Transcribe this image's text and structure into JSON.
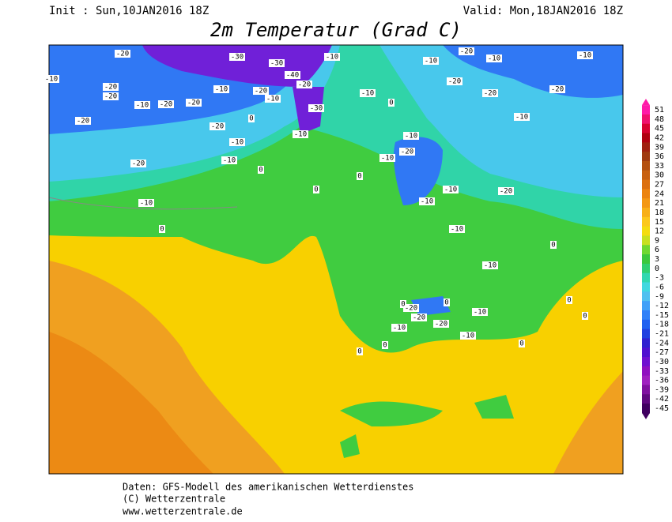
{
  "header": {
    "init": "Init : Sun,10JAN2016 18Z",
    "valid": "Valid: Mon,18JAN2016 18Z",
    "title": "2m Temperatur (Grad C)"
  },
  "legend": {
    "values": [
      51,
      48,
      45,
      42,
      39,
      36,
      33,
      30,
      27,
      24,
      21,
      18,
      15,
      12,
      9,
      6,
      3,
      0,
      -3,
      -6,
      -9,
      -12,
      -15,
      -18,
      -21,
      -24,
      -27,
      -30,
      -33,
      -36,
      -39,
      -42,
      -45
    ],
    "colors": [
      "#ff1aa8",
      "#f0106e",
      "#d80030",
      "#b00010",
      "#a02010",
      "#a03a10",
      "#b45010",
      "#c86010",
      "#dc7010",
      "#ec8410",
      "#f49814",
      "#f8b018",
      "#fcc81c",
      "#f4dc10",
      "#c8e020",
      "#70d830",
      "#3cc83c",
      "#30d070",
      "#30d8b0",
      "#40d8e0",
      "#50c0f0",
      "#40a0f8",
      "#3080f8",
      "#2060f0",
      "#2040e0",
      "#3020d0",
      "#5010d0",
      "#7010d0",
      "#9010c0",
      "#a020c0",
      "#8010a0",
      "#600880",
      "#400060"
    ]
  },
  "map": {
    "contour_labels": [
      -20,
      -20,
      -30,
      -30,
      -10,
      -20,
      -10,
      -10,
      -20,
      -20,
      -20,
      -10,
      -20,
      -20,
      -10,
      -10,
      -10,
      -20,
      -30,
      -40,
      -20,
      -10,
      -10,
      0,
      0,
      -10,
      0,
      -10,
      -20,
      -20,
      -10,
      -10,
      -20,
      -10,
      -20,
      0,
      -20,
      -10,
      -10,
      0,
      -10,
      0,
      -10,
      -20,
      -10,
      -20,
      0,
      0,
      -10,
      -10,
      0,
      0,
      -10,
      -20,
      -20,
      -10,
      0,
      0,
      0,
      0
    ]
  },
  "footer": {
    "source": "Daten: GFS-Modell des amerikanischen Wetterdienstes",
    "copyright": "(C) Wetterzentrale",
    "url": "www.wetterzentrale.de"
  }
}
